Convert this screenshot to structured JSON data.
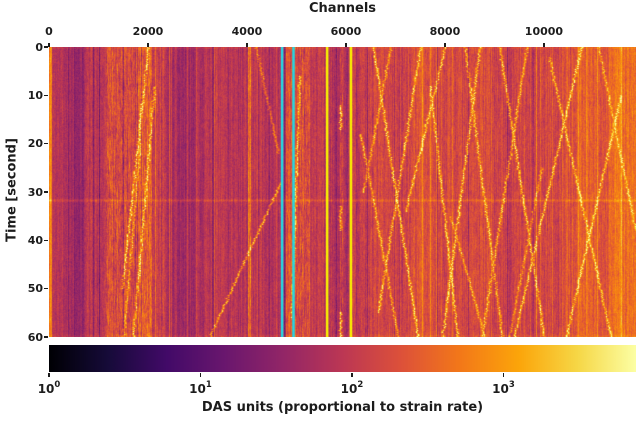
{
  "figure": {
    "title": "Channels",
    "ylabel": "Time [second]",
    "colorbar_label": "DAS units (proportional to strain rate)",
    "background": "#ffffff",
    "text_color": "#1c1c1c"
  },
  "chart_data": {
    "type": "heatmap",
    "title": "Channels",
    "xlabel": "Channels",
    "ylabel": "Time [second]",
    "colorbar_label": "DAS units (proportional to strain rate)",
    "x_range": [
      0,
      11860
    ],
    "y_range": [
      0,
      60
    ],
    "x_ticks": [
      0,
      2000,
      4000,
      6000,
      8000,
      10000
    ],
    "y_ticks": [
      0,
      10,
      20,
      30,
      40,
      50,
      60
    ],
    "grid": false,
    "colorbar": {
      "orientation": "horizontal",
      "scale": "log",
      "range": [
        1,
        7500
      ],
      "tick_base": "10",
      "tick_exponents": [
        0,
        1,
        2,
        3
      ]
    },
    "colormap": {
      "name": "inferno",
      "stops": [
        [
          0.0,
          [
            0,
            0,
            4
          ]
        ],
        [
          0.1,
          [
            22,
            11,
            57
          ]
        ],
        [
          0.2,
          [
            66,
            10,
            104
          ]
        ],
        [
          0.3,
          [
            106,
            23,
            110
          ]
        ],
        [
          0.4,
          [
            147,
            38,
            103
          ]
        ],
        [
          0.5,
          [
            188,
            55,
            84
          ]
        ],
        [
          0.6,
          [
            221,
            81,
            58
          ]
        ],
        [
          0.7,
          [
            243,
            120,
            25
          ]
        ],
        [
          0.8,
          [
            252,
            165,
            10
          ]
        ],
        [
          0.9,
          [
            246,
            215,
            70
          ]
        ],
        [
          1.0,
          [
            252,
            255,
            164
          ]
        ]
      ]
    },
    "marker_lines": [
      {
        "channel": 4710,
        "color": "#22dbe5",
        "width": 2.5
      },
      {
        "channel": 4940,
        "color": "#22dbe5",
        "width": 2.5
      },
      {
        "channel": 5620,
        "color": "#f9f400",
        "width": 2.5
      },
      {
        "channel": 6100,
        "color": "#f9f400",
        "width": 2.5
      }
    ],
    "seed": 1337,
    "noise": {
      "pixel": 0.035,
      "smear_ar": 0.8
    },
    "bands": [
      [
        0,
        60,
        0.72,
        0.04,
        0.05
      ],
      [
        60,
        430,
        0.47,
        0.05,
        0.035
      ],
      [
        430,
        700,
        0.43,
        0.05,
        0.03
      ],
      [
        700,
        1150,
        0.5,
        0.06,
        0.05
      ],
      [
        1150,
        1760,
        0.57,
        0.065,
        0.1
      ],
      [
        1760,
        2080,
        0.65,
        0.06,
        0.11
      ],
      [
        2080,
        2360,
        0.53,
        0.05,
        0.06
      ],
      [
        2360,
        2950,
        0.45,
        0.05,
        0.035
      ],
      [
        2950,
        4020,
        0.485,
        0.05,
        0.04
      ],
      [
        4020,
        4070,
        0.68,
        0.05,
        0.09
      ],
      [
        4070,
        4460,
        0.49,
        0.05,
        0.04
      ],
      [
        4460,
        4770,
        0.445,
        0.045,
        0.035
      ],
      [
        4770,
        5260,
        0.6,
        0.06,
        0.1
      ],
      [
        5260,
        5620,
        0.5,
        0.05,
        0.045
      ],
      [
        5620,
        5860,
        0.49,
        0.05,
        0.05
      ],
      [
        5860,
        5930,
        0.54,
        0.05,
        0.08
      ],
      [
        5930,
        6110,
        0.49,
        0.05,
        0.05
      ],
      [
        6110,
        6900,
        0.54,
        0.05,
        0.05
      ],
      [
        6900,
        8200,
        0.565,
        0.05,
        0.05
      ],
      [
        8200,
        9500,
        0.555,
        0.05,
        0.05
      ],
      [
        9500,
        10400,
        0.575,
        0.05,
        0.05
      ],
      [
        10400,
        11300,
        0.625,
        0.05,
        0.05
      ],
      [
        11300,
        11860,
        0.675,
        0.05,
        0.05
      ]
    ],
    "traces": [
      [
        6550,
        0,
        7450,
        60,
        0.32
      ],
      [
        7500,
        0,
        6650,
        55,
        0.3
      ],
      [
        8000,
        0,
        7200,
        34,
        0.28
      ],
      [
        7700,
        8,
        8250,
        60,
        0.3
      ],
      [
        8700,
        0,
        7950,
        60,
        0.3
      ],
      [
        8400,
        0,
        9150,
        60,
        0.28
      ],
      [
        9650,
        0,
        8750,
        60,
        0.26
      ],
      [
        9100,
        0,
        10000,
        60,
        0.3
      ],
      [
        10750,
        0,
        9400,
        60,
        0.3
      ],
      [
        10100,
        2,
        11350,
        60,
        0.26
      ],
      [
        11550,
        10,
        10450,
        60,
        0.28
      ],
      [
        11100,
        0,
        11850,
        38,
        0.22
      ],
      [
        6300,
        18,
        7050,
        60,
        0.26
      ],
      [
        6900,
        0,
        6350,
        30,
        0.24
      ],
      [
        2000,
        0,
        1480,
        50,
        0.3
      ],
      [
        2130,
        8,
        1700,
        60,
        0.26
      ],
      [
        1840,
        20,
        1500,
        60,
        0.22
      ],
      [
        4680,
        28,
        3250,
        60,
        0.3
      ],
      [
        4180,
        0,
        4630,
        22,
        0.2
      ],
      [
        5060,
        6,
        4900,
        56,
        0.26
      ],
      [
        9950,
        25,
        9300,
        60,
        0.22
      ],
      [
        8100,
        35,
        8800,
        60,
        0.22
      ],
      [
        5880,
        12,
        5880,
        17,
        0.34
      ],
      [
        5880,
        33,
        5880,
        38,
        0.3
      ],
      [
        5885,
        55,
        5885,
        60,
        0.34
      ]
    ],
    "horizontal_line": {
      "time": 31.7,
      "amplitude": 0.09
    },
    "edge_glow": {
      "bottom_amp": 0.06,
      "top_amp": 0.03
    }
  }
}
